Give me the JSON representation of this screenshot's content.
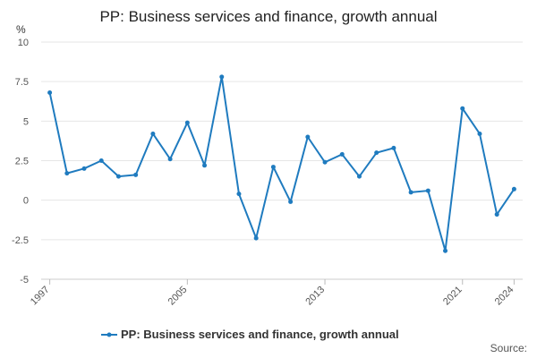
{
  "chart_data": {
    "type": "line",
    "title": "PP: Business services and finance, growth annual",
    "ylabel": "%",
    "xlabel": "",
    "ylim": [
      -5,
      10
    ],
    "yticks": [
      10,
      7.5,
      5,
      2.5,
      0,
      -2.5,
      -5
    ],
    "xticks": [
      "1997",
      "2005",
      "2013",
      "2021",
      "2024"
    ],
    "grid": true,
    "legend_position": "bottom",
    "x": [
      1997,
      1998,
      1999,
      2000,
      2001,
      2002,
      2003,
      2004,
      2005,
      2006,
      2007,
      2008,
      2009,
      2010,
      2011,
      2012,
      2013,
      2014,
      2015,
      2016,
      2017,
      2018,
      2019,
      2020,
      2021,
      2022,
      2023,
      2024
    ],
    "series": [
      {
        "name": "PP: Business services and finance, growth annual",
        "color": "#1f7bbf",
        "values": [
          6.8,
          1.7,
          2.0,
          2.5,
          1.5,
          1.6,
          4.2,
          2.6,
          4.9,
          2.2,
          7.8,
          0.4,
          -2.4,
          2.1,
          -0.1,
          4.0,
          2.4,
          2.9,
          1.5,
          3.0,
          3.3,
          0.5,
          0.6,
          -3.2,
          5.8,
          4.2,
          -0.9,
          0.7
        ]
      }
    ]
  },
  "footer": {
    "source_label": "Source:"
  }
}
